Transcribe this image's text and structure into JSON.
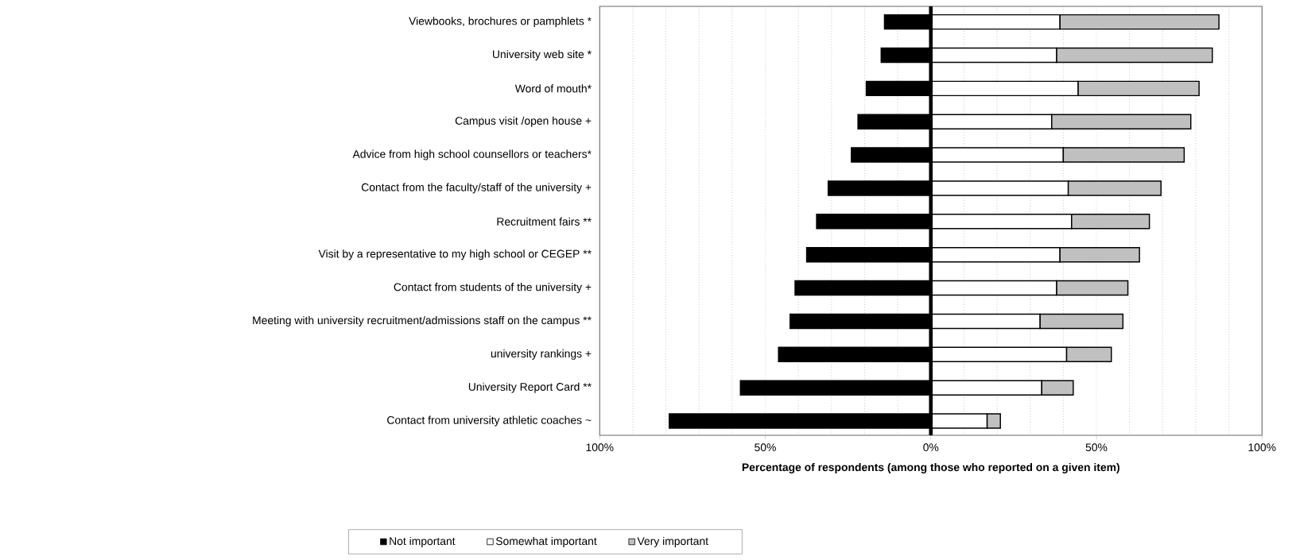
{
  "chart_data": {
    "type": "bar",
    "orientation": "horizontal",
    "stacked": true,
    "categories": [
      "Viewbooks, brochures or pamphlets *",
      "University web site *",
      "Word of mouth*",
      "Campus visit /open house +",
      "Advice from high school counsellors or teachers*",
      "Contact from the faculty/staff of the university +",
      "Recruitment fairs **",
      "Visit by a representative to my high school or CEGEP **",
      "Contact from students of the university +",
      "Meeting with university recruitment/admissions staff on the campus **",
      "university rankings +",
      "University Report Card **",
      "Contact from university athletic coaches ~"
    ],
    "series": [
      {
        "name": "Not important",
        "color": "#000000",
        "values": [
          -14,
          -15,
          -19.5,
          -22,
          -24,
          -31,
          -34.5,
          -37.5,
          -41,
          -42.5,
          -46,
          -57.5,
          -79
        ]
      },
      {
        "name": "Somewhat important",
        "color": "#ffffff",
        "values": [
          39,
          38,
          44.5,
          36.5,
          40,
          41.5,
          42.5,
          39,
          38,
          33,
          41,
          33.5,
          17
        ]
      },
      {
        "name": "Very important",
        "color": "#c0c0c0",
        "values": [
          48,
          47,
          36.5,
          42,
          36.5,
          28,
          23.5,
          24,
          21.5,
          25,
          13.5,
          9.5,
          4
        ]
      }
    ],
    "xlim": [
      -100,
      100
    ],
    "xticks": [
      {
        "value": -100,
        "label": "100%"
      },
      {
        "value": -90,
        "label": null
      },
      {
        "value": -80,
        "label": null
      },
      {
        "value": -70,
        "label": null
      },
      {
        "value": -60,
        "label": null
      },
      {
        "value": -50,
        "label": "50%"
      },
      {
        "value": -40,
        "label": null
      },
      {
        "value": -30,
        "label": null
      },
      {
        "value": -20,
        "label": null
      },
      {
        "value": -10,
        "label": null
      },
      {
        "value": 0,
        "label": "0%"
      },
      {
        "value": 10,
        "label": null
      },
      {
        "value": 20,
        "label": null
      },
      {
        "value": 30,
        "label": null
      },
      {
        "value": 40,
        "label": null
      },
      {
        "value": 50,
        "label": "50%"
      },
      {
        "value": 60,
        "label": null
      },
      {
        "value": 70,
        "label": null
      },
      {
        "value": 80,
        "label": null
      },
      {
        "value": 90,
        "label": null
      },
      {
        "value": 100,
        "label": "100%"
      }
    ],
    "xlabel": "Percentage of respondents (among those who reported on a given item)",
    "ref_lines": [
      {
        "axis": "x",
        "value": 0,
        "color": "#000000"
      }
    ],
    "grid": "x",
    "legend": "bottom"
  }
}
